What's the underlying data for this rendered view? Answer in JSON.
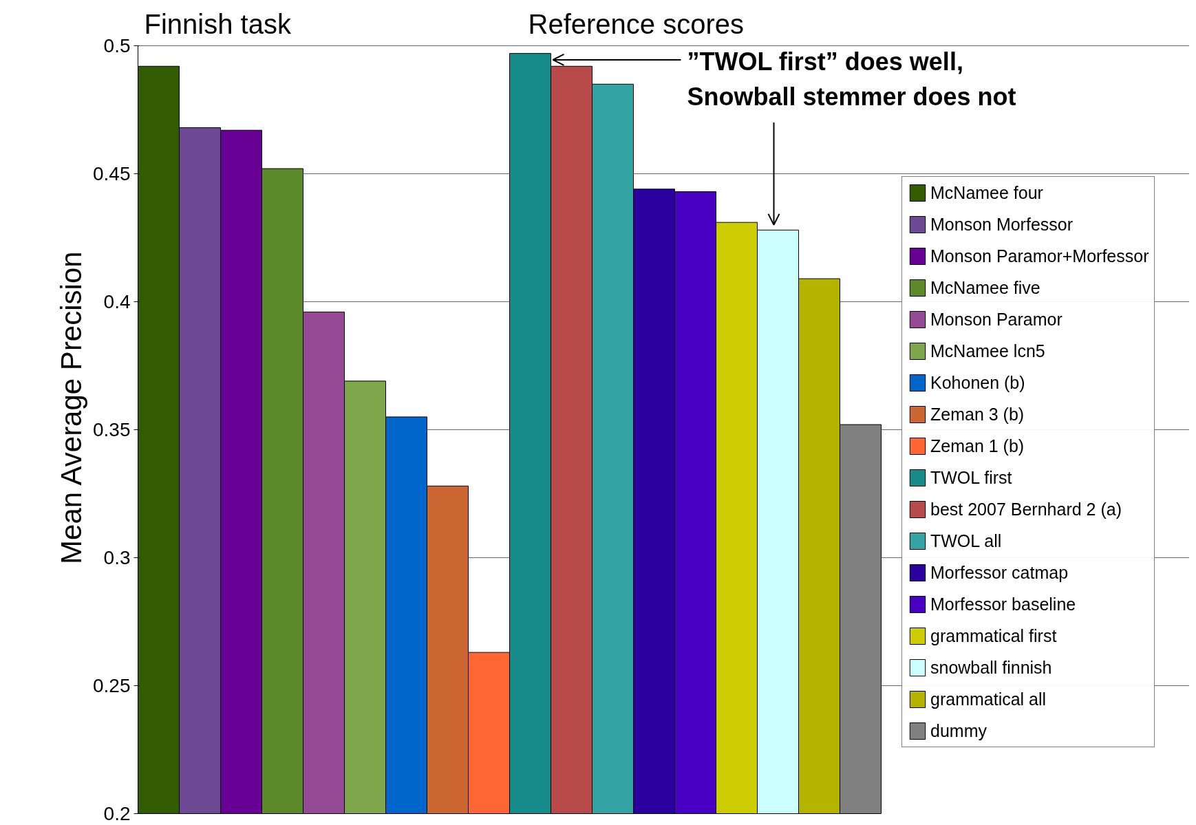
{
  "chart_data": {
    "type": "bar",
    "ylabel": "Mean Average Precision",
    "categories": [
      null
    ],
    "series": [
      {
        "name": "McNamee four",
        "color": "#335c00",
        "values": [
          0.492
        ]
      },
      {
        "name": "Monson Morfessor",
        "color": "#6e4a96",
        "values": [
          0.468
        ]
      },
      {
        "name": "Monson Paramor+Morfessor",
        "color": "#690096",
        "values": [
          0.467
        ]
      },
      {
        "name": "McNamee five",
        "color": "#5c8a2a",
        "values": [
          0.452
        ]
      },
      {
        "name": "Monson Paramor",
        "color": "#954a96",
        "values": [
          0.396
        ]
      },
      {
        "name": "McNamee lcn5",
        "color": "#7ea64a",
        "values": [
          0.369
        ]
      },
      {
        "name": "Kohonen (b)",
        "color": "#0066cc",
        "values": [
          0.355
        ]
      },
      {
        "name": "Zeman 3 (b)",
        "color": "#cc6633",
        "values": [
          0.328
        ]
      },
      {
        "name": "Zeman 1 (b)",
        "color": "#ff6633",
        "values": [
          0.263
        ]
      },
      {
        "name": "TWOL first",
        "color": "#178a8a",
        "values": [
          0.497
        ]
      },
      {
        "name": "best 2007 Bernhard 2 (a)",
        "color": "#b84a4a",
        "values": [
          0.492
        ]
      },
      {
        "name": "TWOL all",
        "color": "#33a3a3",
        "values": [
          0.485
        ]
      },
      {
        "name": "Morfessor catmap",
        "color": "#2a009e",
        "values": [
          0.444
        ]
      },
      {
        "name": "Morfessor baseline",
        "color": "#4a00c2",
        "values": [
          0.443
        ]
      },
      {
        "name": "grammatical first",
        "color": "#cccc00",
        "values": [
          0.431
        ]
      },
      {
        "name": "snowball finnish",
        "color": "#ccffff",
        "values": [
          0.428
        ]
      },
      {
        "name": "grammatical all",
        "color": "#b3b300",
        "values": [
          0.409
        ]
      },
      {
        "name": "dummy",
        "color": "#808080",
        "values": [
          0.352
        ]
      }
    ],
    "ylim": [
      0.2,
      0.5
    ],
    "yticks": [
      0.2,
      0.25,
      0.3,
      0.35,
      0.4,
      0.45,
      0.5
    ],
    "grid": "y",
    "legend": "right",
    "tick_labels": "y",
    "annotations": [
      "Finnish task",
      "Reference scores",
      "”TWOL first” does well,\nSnowball stemmer does not"
    ]
  }
}
